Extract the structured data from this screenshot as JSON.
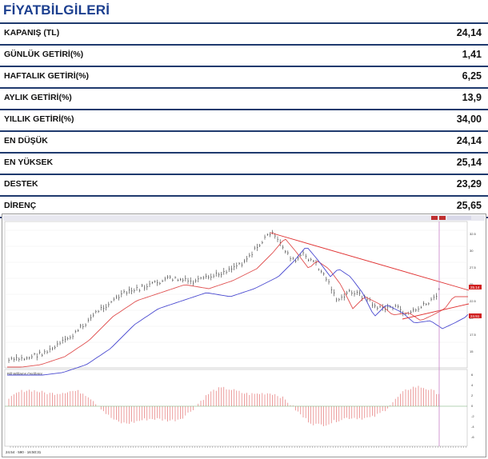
{
  "header": {
    "title": "FİYATBİLGİLERİ"
  },
  "rows": [
    {
      "label": "KAPANIŞ  (TL)",
      "value": "24,14"
    },
    {
      "label": "GÜNLÜK GETİRİ(%)",
      "value": "1,41"
    },
    {
      "label": "HAFTALIK GETİRİ(%)",
      "value": "6,25"
    },
    {
      "label": "AYLIK GETİRİ(%)",
      "value": "13,9"
    },
    {
      "label": "YILLIK  GETİRİ(%)",
      "value": "34,00"
    },
    {
      "label": "EN DÜŞÜK",
      "value": "24,14"
    },
    {
      "label": "EN YÜKSEK",
      "value": "25,14"
    },
    {
      "label": "DESTEK",
      "value": "23,29"
    },
    {
      "label": "DİRENÇ",
      "value": "25,65"
    }
  ],
  "chart": {
    "colors": {
      "price": "#333333",
      "ma_short": "#e05050",
      "ma_long": "#4a4ad0",
      "trend": "#e03030",
      "osc": "#e06060",
      "cursor": "#c070c0"
    },
    "footer_text": "24.54 · 590 · 16:50:31",
    "osc_title": "Bill Williams Oscillator",
    "price_tags": [
      "25.14",
      "24.51"
    ],
    "y_ticks": [
      "32.5",
      "30",
      "27.5",
      "25",
      "22.5",
      "20",
      "17.5",
      "15"
    ],
    "osc_ticks": [
      "6",
      "4",
      "2",
      "0",
      "-2",
      "-4",
      "-6"
    ]
  }
}
